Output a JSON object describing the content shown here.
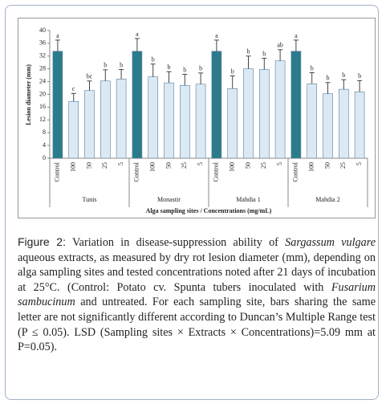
{
  "chart_data": {
    "type": "bar",
    "y_label": "Lesion diameter (mm)",
    "x_label": "Alga sampling sites / Concentrations (mg/mL)",
    "groups": [
      "Tunis",
      "Monastir",
      "Mahdia 1",
      "Mahdia 2"
    ],
    "categories": [
      "Control",
      "100",
      "50",
      "25",
      "5",
      "Control",
      "100",
      "50",
      "25",
      "5",
      "Control",
      "100",
      "50",
      "25",
      "5",
      "Control",
      "100",
      "50",
      "25",
      "5"
    ],
    "values": [
      33.5,
      17.8,
      21.2,
      24.2,
      24.8,
      33.5,
      25.5,
      23.6,
      22.8,
      23.2,
      33.5,
      21.8,
      28,
      27.8,
      30.5,
      33.5,
      23.3,
      20.2,
      21.6,
      20.8
    ],
    "errors": [
      3.5,
      2.5,
      3,
      3.5,
      3,
      4,
      4,
      3.5,
      3.5,
      3.5,
      3.5,
      4,
      4,
      3.5,
      3.5,
      3.5,
      3.5,
      3.5,
      3,
      3.5
    ],
    "letters": [
      "a",
      "c",
      "bc",
      "b",
      "b",
      "a",
      "b",
      "b",
      "b",
      "b",
      "a",
      "b",
      "b",
      "b",
      "ab",
      "a",
      "b",
      "b",
      "b",
      "b"
    ],
    "colors": [
      "#2b7b8c",
      "#dbe9f4",
      "#dbe9f4",
      "#dbe9f4",
      "#dbe9f4",
      "#2b7b8c",
      "#dbe9f4",
      "#dbe9f4",
      "#dbe9f4",
      "#dbe9f4",
      "#2b7b8c",
      "#dbe9f4",
      "#dbe9f4",
      "#dbe9f4",
      "#dbe9f4",
      "#2b7b8c",
      "#dbe9f4",
      "#dbe9f4",
      "#dbe9f4",
      "#dbe9f4"
    ],
    "ylim": [
      0,
      40
    ],
    "yticks": [
      0,
      4,
      8,
      12,
      16,
      20,
      24,
      28,
      32,
      36,
      40
    ]
  },
  "caption": {
    "label": "Figure 2:",
    "parts": [
      " Variation in disease-suppression ability of ",
      "Sargassum vulgare",
      " aqueous extracts, as measured by dry rot lesion diameter (mm), depending on alga sampling sites and tested concentrations noted after 21 days of incubation at 25°C. (Control: Potato cv. Spunta tubers inoculated with ",
      "Fusarium sambucinum",
      " and untreated. For each sampling site, bars sharing the same letter are not significantly different according to Duncan’s Multiple Range test (P ≤ 0.05). LSD (Sampling sites × Extracts × Concentrations)=5.09 mm at P=0.05)."
    ]
  }
}
